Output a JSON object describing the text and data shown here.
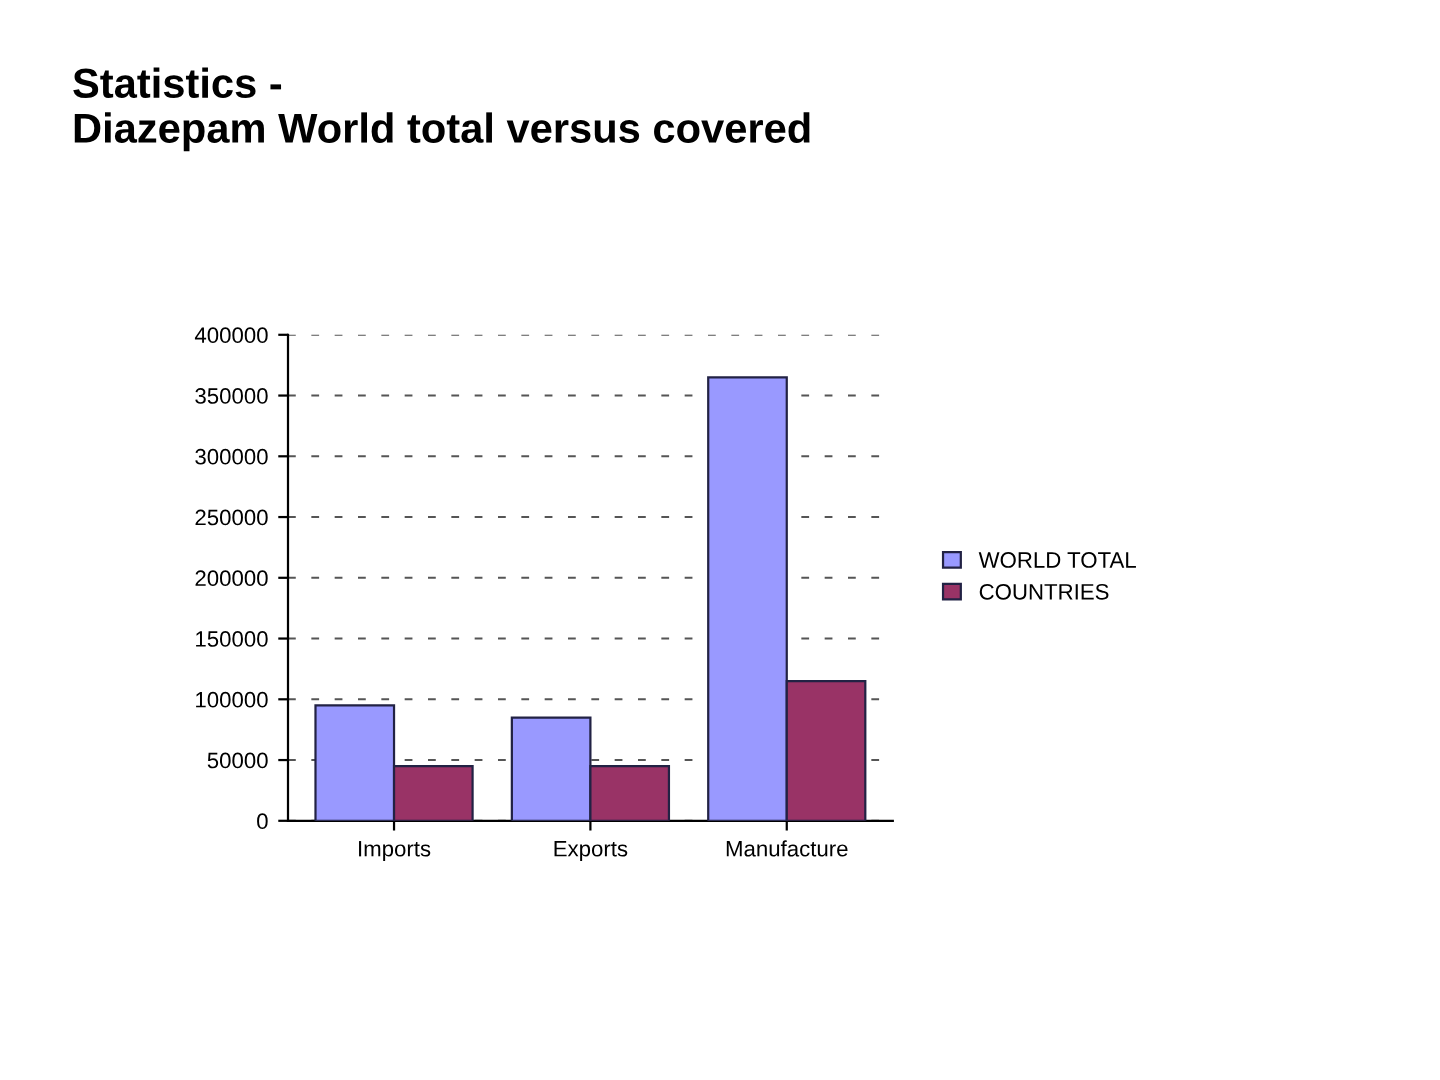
{
  "chart_data": {
    "type": "bar",
    "title": "Statistics -\nDiazepam World total versus covered",
    "categories": [
      "Imports",
      "Exports",
      "Manufacture"
    ],
    "series": [
      {
        "name": "WORLD TOTAL",
        "color": "#9999ff",
        "values": [
          95000,
          85000,
          365000
        ]
      },
      {
        "name": "COUNTRIES",
        "color": "#993366",
        "values": [
          45000,
          45000,
          115000
        ]
      }
    ],
    "ylim": [
      0,
      400000
    ],
    "yticks": [
      0,
      50000,
      100000,
      150000,
      200000,
      250000,
      300000,
      350000,
      400000
    ],
    "grid": "y",
    "legend": "right"
  }
}
